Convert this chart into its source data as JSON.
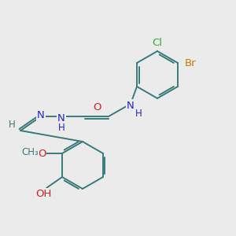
{
  "background_color": "#ebebeb",
  "bond_color": "#3a7a7a",
  "bond_width": 1.4,
  "atoms": {
    "Cl": {
      "color": "#33aa33",
      "fontsize": 9.5
    },
    "Br": {
      "color": "#cc7700",
      "fontsize": 9.5
    },
    "N": {
      "color": "#2222cc",
      "fontsize": 9.5
    },
    "O": {
      "color": "#cc2222",
      "fontsize": 9.5
    },
    "H": {
      "color": "#2222cc",
      "fontsize": 8.5
    },
    "C": {
      "color": "#3a7a7a",
      "fontsize": 8.5
    }
  },
  "figsize": [
    3.0,
    3.0
  ],
  "dpi": 100
}
